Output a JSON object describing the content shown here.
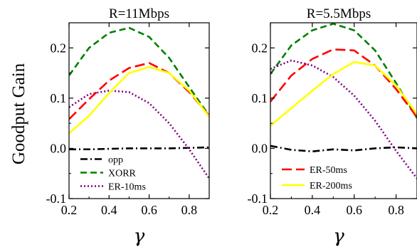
{
  "figure": {
    "ylabel": "Goodput Gain",
    "xlabel": "γ"
  },
  "chart_data": [
    {
      "type": "line",
      "title": "R=11Mbps",
      "xlabel": "γ",
      "ylabel": "Goodput Gain",
      "xlim": [
        0.2,
        0.9
      ],
      "ylim": [
        -0.1,
        0.25
      ],
      "xticks": [
        0.2,
        0.4,
        0.6,
        0.8
      ],
      "yticks": [
        -0.1,
        0.0,
        0.1,
        0.2
      ],
      "xtick_labels": [
        "0.2",
        "0.4",
        "0.6",
        "0.8"
      ],
      "ytick_labels": [
        "-0.1",
        "0.0",
        "0.1",
        "0.2"
      ],
      "grid": false,
      "legend_position": "bottom-left",
      "legend": [
        "opp",
        "XORR",
        "ER-10ms"
      ],
      "series": [
        {
          "name": "opp",
          "color": "#000000",
          "dash": "dashdot",
          "x": [
            0.2,
            0.3,
            0.4,
            0.5,
            0.6,
            0.7,
            0.8,
            0.9
          ],
          "y": [
            -0.002,
            -0.002,
            -0.001,
            0.0,
            0.0,
            0.0,
            0.001,
            0.002
          ]
        },
        {
          "name": "XORR",
          "color": "#008000",
          "dash": "dashed",
          "x": [
            0.2,
            0.3,
            0.4,
            0.5,
            0.6,
            0.7,
            0.8,
            0.9
          ],
          "y": [
            0.145,
            0.2,
            0.23,
            0.24,
            0.222,
            0.18,
            0.122,
            0.065
          ]
        },
        {
          "name": "ER-10ms",
          "color": "#800080",
          "dash": "dotted",
          "x": [
            0.2,
            0.3,
            0.4,
            0.5,
            0.6,
            0.7,
            0.8,
            0.9
          ],
          "y": [
            0.082,
            0.108,
            0.115,
            0.112,
            0.09,
            0.05,
            -0.002,
            -0.06
          ]
        },
        {
          "name": "ER-50ms",
          "color": "#ff0000",
          "dash": "longdash",
          "x": [
            0.2,
            0.3,
            0.4,
            0.5,
            0.6,
            0.7,
            0.8,
            0.9
          ],
          "y": [
            0.058,
            0.098,
            0.135,
            0.16,
            0.17,
            0.15,
            0.112,
            0.065
          ]
        },
        {
          "name": "ER-200ms",
          "color": "#ffff00",
          "dash": "solid",
          "x": [
            0.2,
            0.3,
            0.4,
            0.5,
            0.6,
            0.7,
            0.8,
            0.9
          ],
          "y": [
            0.03,
            0.065,
            0.11,
            0.15,
            0.162,
            0.15,
            0.115,
            0.063
          ]
        }
      ]
    },
    {
      "type": "line",
      "title": "R=5.5Mbps",
      "xlabel": "γ",
      "ylabel": "",
      "xlim": [
        0.2,
        0.9
      ],
      "ylim": [
        -0.1,
        0.25
      ],
      "xticks": [
        0.2,
        0.4,
        0.6,
        0.8
      ],
      "yticks": [
        -0.1,
        0.0,
        0.1,
        0.2
      ],
      "xtick_labels": [
        "0.2",
        "0.4",
        "0.6",
        "0.8"
      ],
      "ytick_labels": [
        "-0.1",
        "0.0",
        "0.1",
        "0.2"
      ],
      "grid": false,
      "legend_position": "bottom-left",
      "legend": [
        "ER-50ms",
        "ER-200ms"
      ],
      "series": [
        {
          "name": "opp",
          "color": "#000000",
          "dash": "dashdot",
          "x": [
            0.2,
            0.3,
            0.4,
            0.5,
            0.6,
            0.7,
            0.8,
            0.9
          ],
          "y": [
            0.005,
            -0.003,
            -0.006,
            -0.002,
            -0.004,
            0.0,
            0.002,
            0.0
          ]
        },
        {
          "name": "XORR",
          "color": "#008000",
          "dash": "dashed",
          "x": [
            0.2,
            0.3,
            0.4,
            0.5,
            0.6,
            0.7,
            0.8,
            0.9
          ],
          "y": [
            0.148,
            0.205,
            0.235,
            0.248,
            0.235,
            0.195,
            0.13,
            0.06
          ]
        },
        {
          "name": "ER-10ms",
          "color": "#800080",
          "dash": "dotted",
          "x": [
            0.2,
            0.3,
            0.4,
            0.5,
            0.6,
            0.7,
            0.8,
            0.9
          ],
          "y": [
            0.158,
            0.175,
            0.165,
            0.142,
            0.105,
            0.055,
            -0.005,
            -0.06
          ]
        },
        {
          "name": "ER-50ms",
          "color": "#ff0000",
          "dash": "longdash",
          "x": [
            0.2,
            0.3,
            0.4,
            0.5,
            0.6,
            0.7,
            0.8,
            0.9
          ],
          "y": [
            0.093,
            0.145,
            0.178,
            0.197,
            0.195,
            0.165,
            0.118,
            0.062
          ]
        },
        {
          "name": "ER-200ms",
          "color": "#ffff00",
          "dash": "solid",
          "x": [
            0.2,
            0.3,
            0.4,
            0.5,
            0.6,
            0.7,
            0.8,
            0.9
          ],
          "y": [
            0.045,
            0.08,
            0.115,
            0.148,
            0.172,
            0.165,
            0.125,
            0.068
          ]
        }
      ]
    }
  ]
}
